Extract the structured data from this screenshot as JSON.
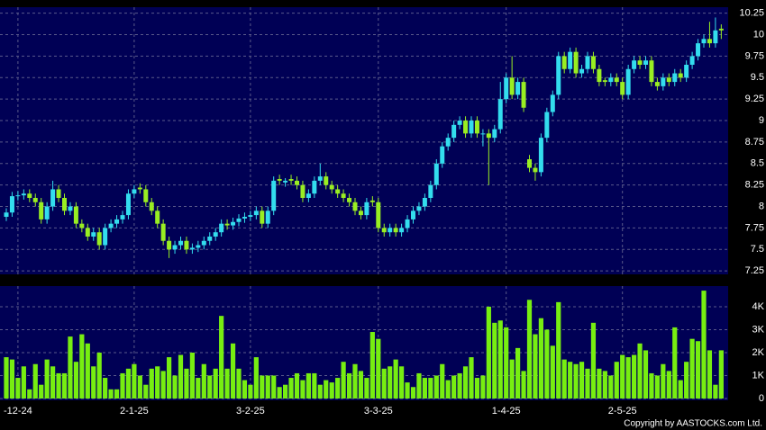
{
  "chart_data": [
    {
      "type": "candlestick",
      "up_color": "#33ddee",
      "down_color": "#99ee22",
      "grid": true,
      "ylim": [
        7.21,
        10.32
      ],
      "yticks": [
        7.25,
        7.5,
        7.75,
        8,
        8.25,
        8.5,
        8.75,
        9,
        9.25,
        9.5,
        9.75,
        10,
        10.25
      ],
      "open": [
        7.88,
        7.93,
        8.12,
        8.13,
        8.15,
        8.1,
        8.05,
        7.85,
        8.0,
        8.2,
        8.1,
        7.95,
        8.0,
        7.8,
        7.75,
        7.65,
        7.7,
        7.55,
        7.75,
        7.8,
        7.85,
        7.9,
        8.15,
        8.22,
        8.2,
        8.05,
        7.95,
        7.8,
        7.6,
        7.5,
        7.55,
        7.6,
        7.5,
        7.52,
        7.55,
        7.6,
        7.65,
        7.7,
        7.8,
        7.78,
        7.82,
        7.86,
        7.88,
        7.9,
        7.95,
        7.8,
        7.95,
        8.32,
        8.28,
        8.32,
        8.3,
        8.25,
        8.1,
        8.15,
        8.3,
        8.35,
        8.25,
        8.2,
        8.15,
        8.1,
        8.05,
        7.95,
        7.9,
        8.07,
        8.05,
        7.75,
        7.7,
        7.75,
        7.7,
        7.75,
        7.85,
        7.95,
        8.0,
        8.1,
        8.25,
        8.5,
        8.7,
        8.8,
        8.95,
        9.0,
        8.85,
        9.0,
        8.85,
        8.85,
        8.8,
        8.9,
        9.25,
        9.5,
        9.3,
        9.45,
        8.55,
        8.45,
        8.4,
        8.8,
        9.1,
        9.3,
        9.75,
        9.6,
        9.8,
        9.55,
        9.6,
        9.75,
        9.6,
        9.47,
        9.45,
        9.5,
        9.45,
        9.3,
        9.6,
        9.7,
        9.65,
        9.7,
        9.45,
        9.4,
        9.5,
        9.45,
        9.55,
        9.5,
        9.65,
        9.75,
        9.9,
        9.95,
        9.9,
        10.07
      ],
      "high": [
        7.98,
        8.17,
        8.18,
        8.2,
        8.2,
        8.15,
        8.1,
        8.05,
        8.3,
        8.25,
        8.15,
        8.05,
        8.05,
        7.85,
        7.8,
        7.75,
        7.75,
        7.8,
        7.85,
        7.9,
        7.95,
        8.2,
        8.25,
        8.27,
        8.25,
        8.1,
        8.0,
        7.85,
        7.65,
        7.6,
        7.65,
        7.65,
        7.57,
        7.6,
        7.65,
        7.7,
        7.75,
        7.85,
        7.85,
        7.87,
        7.91,
        7.93,
        7.95,
        8.0,
        8.0,
        8.0,
        8.35,
        8.37,
        8.33,
        8.37,
        8.35,
        8.3,
        8.2,
        8.35,
        8.5,
        8.4,
        8.3,
        8.25,
        8.2,
        8.15,
        8.1,
        8.0,
        8.1,
        8.12,
        8.1,
        7.8,
        7.8,
        7.8,
        7.8,
        7.9,
        8.0,
        8.05,
        8.15,
        8.3,
        8.55,
        8.75,
        8.85,
        9.0,
        9.05,
        9.05,
        9.05,
        9.05,
        8.9,
        8.9,
        8.95,
        9.45,
        9.55,
        9.75,
        9.5,
        9.5,
        8.6,
        8.5,
        8.85,
        9.15,
        9.35,
        9.8,
        9.8,
        9.85,
        9.85,
        9.65,
        9.8,
        9.8,
        9.65,
        9.5,
        9.55,
        9.55,
        9.5,
        9.65,
        9.75,
        9.75,
        9.75,
        9.75,
        9.5,
        9.55,
        9.55,
        9.6,
        9.6,
        9.7,
        9.8,
        9.95,
        10.0,
        10.15,
        10.2,
        10.12
      ],
      "low": [
        7.83,
        7.88,
        8.07,
        8.08,
        8.05,
        8.0,
        7.8,
        7.8,
        7.95,
        8.05,
        7.9,
        7.9,
        7.75,
        7.7,
        7.6,
        7.6,
        7.5,
        7.5,
        7.7,
        7.75,
        7.8,
        7.85,
        8.1,
        8.15,
        8.0,
        7.9,
        7.75,
        7.55,
        7.4,
        7.45,
        7.5,
        7.45,
        7.45,
        7.47,
        7.5,
        7.55,
        7.6,
        7.65,
        7.73,
        7.73,
        7.77,
        7.81,
        7.83,
        7.85,
        7.75,
        7.75,
        7.9,
        8.25,
        8.23,
        8.25,
        8.2,
        8.05,
        8.05,
        8.1,
        8.25,
        8.2,
        8.15,
        8.1,
        8.05,
        8.0,
        7.9,
        7.85,
        7.85,
        8.0,
        7.7,
        7.65,
        7.65,
        7.65,
        7.65,
        7.7,
        7.8,
        7.9,
        7.95,
        8.05,
        8.2,
        8.45,
        8.65,
        8.75,
        8.9,
        8.8,
        8.8,
        8.8,
        8.7,
        8.25,
        8.75,
        8.85,
        9.2,
        9.25,
        9.25,
        9.1,
        8.4,
        8.3,
        8.35,
        8.75,
        9.05,
        9.25,
        9.55,
        9.55,
        9.5,
        9.5,
        9.55,
        9.55,
        9.4,
        9.4,
        9.4,
        9.4,
        9.25,
        9.25,
        9.55,
        9.6,
        9.6,
        9.4,
        9.35,
        9.35,
        9.4,
        9.4,
        9.45,
        9.45,
        9.6,
        9.7,
        9.85,
        9.85,
        9.85,
        9.95
      ],
      "close": [
        7.93,
        8.12,
        8.13,
        8.15,
        8.1,
        8.05,
        7.85,
        8.0,
        8.2,
        8.1,
        7.95,
        8.0,
        7.8,
        7.75,
        7.65,
        7.7,
        7.55,
        7.75,
        7.8,
        7.85,
        7.9,
        8.15,
        8.2,
        8.2,
        8.05,
        7.95,
        7.8,
        7.6,
        7.5,
        7.55,
        7.6,
        7.5,
        7.52,
        7.55,
        7.6,
        7.65,
        7.7,
        7.8,
        7.78,
        7.82,
        7.86,
        7.88,
        7.9,
        7.95,
        7.8,
        7.95,
        8.3,
        8.3,
        8.3,
        8.3,
        8.25,
        8.1,
        8.15,
        8.3,
        8.35,
        8.25,
        8.2,
        8.15,
        8.1,
        8.05,
        7.95,
        7.9,
        8.05,
        8.05,
        7.75,
        7.7,
        7.75,
        7.7,
        7.75,
        7.85,
        7.95,
        8.0,
        8.1,
        8.25,
        8.5,
        8.7,
        8.8,
        8.95,
        9.0,
        8.85,
        9.0,
        8.85,
        8.85,
        8.8,
        8.9,
        9.25,
        9.5,
        9.3,
        9.45,
        9.15,
        8.45,
        8.4,
        8.8,
        9.1,
        9.3,
        9.75,
        9.6,
        9.8,
        9.55,
        9.6,
        9.75,
        9.6,
        9.45,
        9.45,
        9.5,
        9.45,
        9.3,
        9.6,
        9.7,
        9.65,
        9.7,
        9.45,
        9.4,
        9.5,
        9.45,
        9.55,
        9.5,
        9.65,
        9.75,
        9.9,
        9.95,
        9.9,
        10.05,
        10.05
      ]
    },
    {
      "type": "bar",
      "color": "#77ee11",
      "grid": true,
      "ylim": [
        0,
        4900
      ],
      "yticks": [
        0,
        {
          "value": 1000,
          "label": "1K"
        },
        {
          "value": 2000,
          "label": "2K"
        },
        {
          "value": 3000,
          "label": "3K"
        },
        {
          "value": 4000,
          "label": "4K"
        }
      ],
      "categories": [
        null,
        null,
        "-12-24",
        null,
        null,
        null,
        null,
        null,
        null,
        null,
        null,
        null,
        null,
        null,
        null,
        null,
        null,
        null,
        null,
        null,
        null,
        null,
        "2-1-25",
        null,
        null,
        null,
        null,
        null,
        null,
        null,
        null,
        null,
        null,
        null,
        null,
        null,
        null,
        null,
        null,
        null,
        null,
        null,
        "3-2-25",
        null,
        null,
        null,
        null,
        null,
        null,
        null,
        null,
        null,
        null,
        null,
        null,
        null,
        null,
        null,
        null,
        null,
        null,
        null,
        null,
        null,
        "3-3-25",
        null,
        null,
        null,
        null,
        null,
        null,
        null,
        null,
        null,
        null,
        null,
        null,
        null,
        null,
        null,
        null,
        null,
        null,
        null,
        null,
        null,
        "1-4-25",
        null,
        null,
        null,
        null,
        null,
        null,
        null,
        null,
        null,
        null,
        null,
        null,
        null,
        null,
        null,
        null,
        null,
        null,
        null,
        "2-5-25",
        null,
        null,
        null,
        null,
        null,
        null,
        null,
        null,
        null,
        null,
        null,
        null,
        null,
        null,
        null,
        null,
        null
      ],
      "values": [
        1800,
        1700,
        900,
        1400,
        400,
        1500,
        600,
        1700,
        1400,
        1100,
        1100,
        2700,
        1600,
        2800,
        2400,
        1400,
        2000,
        900,
        400,
        400,
        1100,
        1300,
        1500,
        1000,
        600,
        1300,
        1400,
        1200,
        1800,
        1000,
        1900,
        1300,
        2000,
        900,
        1500,
        1000,
        1300,
        3600,
        1300,
        2400,
        1300,
        800,
        600,
        1800,
        1000,
        1000,
        1000,
        500,
        600,
        900,
        1100,
        800,
        1100,
        1100,
        600,
        800,
        700,
        900,
        1600,
        1100,
        1500,
        1200,
        900,
        2900,
        2600,
        1300,
        1400,
        1700,
        1400,
        700,
        500,
        1100,
        900,
        900,
        1000,
        1500,
        800,
        1000,
        1100,
        1400,
        1800,
        900,
        1000,
        4000,
        3300,
        3400,
        3100,
        1700,
        2200,
        1200,
        4300,
        2800,
        3500,
        3000,
        2300,
        4200,
        1700,
        1600,
        1500,
        1600,
        1300,
        3300,
        1300,
        1200,
        1000,
        1600,
        1900,
        1800,
        1900,
        2400,
        2100,
        1100,
        1000,
        1500,
        1200,
        3100,
        800,
        1600,
        2600,
        2500,
        4700,
        2100,
        600,
        2100
      ]
    }
  ],
  "copyright": "Copyright by AASTOCKS.com Ltd."
}
